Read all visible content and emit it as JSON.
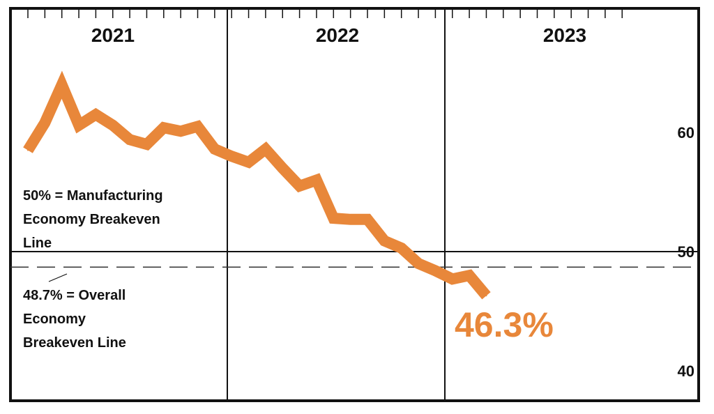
{
  "chart_data": {
    "type": "line",
    "title": "",
    "xlabel": "",
    "ylabel": "",
    "ylim": [
      38,
      66
    ],
    "y_ticks": [
      "60",
      "50",
      "40"
    ],
    "y_tick_values": [
      60,
      50,
      40
    ],
    "year_labels": [
      "2021",
      "2022",
      "2023"
    ],
    "series": [
      {
        "color": "#e8873a",
        "x": [
          "2021-01",
          "2021-02",
          "2021-03",
          "2021-04",
          "2021-05",
          "2021-06",
          "2021-07",
          "2021-08",
          "2021-09",
          "2021-10",
          "2021-11",
          "2021-12",
          "2022-01",
          "2022-02",
          "2022-03",
          "2022-04",
          "2022-05",
          "2022-06",
          "2022-07",
          "2022-08",
          "2022-09",
          "2022-10",
          "2022-11",
          "2022-12",
          "2023-01",
          "2023-02",
          "2023-03",
          "2023-04"
        ],
        "values": [
          58.5,
          60.8,
          64.0,
          60.6,
          61.5,
          60.6,
          59.4,
          59.0,
          60.4,
          60.1,
          60.5,
          58.6,
          58.0,
          57.5,
          58.6,
          57.0,
          55.5,
          56.0,
          52.8,
          52.7,
          52.7,
          50.9,
          50.3,
          49.0,
          48.4,
          47.7,
          48.0,
          46.3
        ]
      }
    ],
    "reference_lines": [
      {
        "value": 50,
        "style": "solid",
        "label": "50% = Manufacturing Economy Breakeven Line"
      },
      {
        "value": 48.7,
        "style": "dashed",
        "label": "48.7% = Overall Economy Breakeven Line"
      }
    ],
    "annotations": {
      "manufacturing_lines": [
        "50% = Manufacturing",
        "Economy Breakeven",
        "Line"
      ],
      "overall_lines": [
        "48.7% = Overall",
        "Economy",
        "Breakeven Line"
      ],
      "last_value_label": "46.3%"
    },
    "grid": false,
    "legend": "none"
  },
  "colors": {
    "line": "#e8873a",
    "frame": "#111111",
    "label_accent": "#e8873a"
  }
}
